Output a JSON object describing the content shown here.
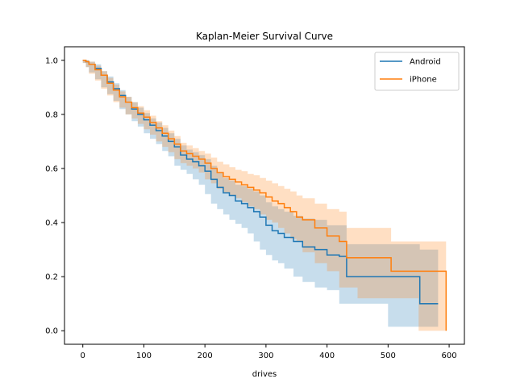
{
  "chart_data": {
    "type": "line",
    "title": "Kaplan-Meier Survival Curve",
    "xlabel": "drives",
    "ylabel": "",
    "xlim": [
      -30,
      625
    ],
    "ylim": [
      -0.05,
      1.05
    ],
    "xticks": [
      0,
      100,
      200,
      300,
      400,
      500,
      600
    ],
    "yticks": [
      0.0,
      0.2,
      0.4,
      0.6,
      0.8,
      1.0
    ],
    "xtick_labels": [
      "0",
      "100",
      "200",
      "300",
      "400",
      "500",
      "600"
    ],
    "ytick_labels": [
      "0.0",
      "0.2",
      "0.4",
      "0.6",
      "0.8",
      "1.0"
    ],
    "legend_position": "top-right",
    "grid": false,
    "series": [
      {
        "name": "Android",
        "color": "#1f77b4",
        "step": true,
        "x": [
          0,
          5,
          10,
          20,
          30,
          40,
          50,
          60,
          70,
          80,
          90,
          100,
          110,
          120,
          130,
          140,
          150,
          160,
          170,
          180,
          190,
          200,
          210,
          220,
          230,
          240,
          250,
          260,
          270,
          280,
          290,
          300,
          310,
          320,
          330,
          345,
          360,
          380,
          400,
          420,
          432,
          450,
          500,
          552,
          582
        ],
        "y": [
          1.0,
          0.995,
          0.985,
          0.97,
          0.945,
          0.92,
          0.895,
          0.87,
          0.845,
          0.82,
          0.8,
          0.78,
          0.76,
          0.74,
          0.72,
          0.7,
          0.68,
          0.65,
          0.635,
          0.625,
          0.61,
          0.59,
          0.56,
          0.53,
          0.51,
          0.5,
          0.48,
          0.47,
          0.455,
          0.44,
          0.42,
          0.39,
          0.37,
          0.36,
          0.345,
          0.33,
          0.31,
          0.3,
          0.28,
          0.275,
          0.2,
          0.2,
          0.2,
          0.1,
          0.1
        ],
        "ci_lower": [
          1.0,
          0.99,
          0.975,
          0.955,
          0.93,
          0.9,
          0.875,
          0.85,
          0.82,
          0.8,
          0.775,
          0.755,
          0.73,
          0.71,
          0.69,
          0.665,
          0.645,
          0.61,
          0.595,
          0.58,
          0.56,
          0.54,
          0.505,
          0.47,
          0.45,
          0.43,
          0.41,
          0.395,
          0.38,
          0.36,
          0.33,
          0.3,
          0.28,
          0.26,
          0.25,
          0.23,
          0.2,
          0.18,
          0.16,
          0.15,
          0.1,
          0.1,
          0.1,
          0.015,
          0.015
        ],
        "ci_upper": [
          1.0,
          1.0,
          0.995,
          0.985,
          0.96,
          0.94,
          0.915,
          0.89,
          0.865,
          0.845,
          0.825,
          0.805,
          0.785,
          0.77,
          0.75,
          0.73,
          0.71,
          0.685,
          0.67,
          0.66,
          0.65,
          0.635,
          0.61,
          0.585,
          0.565,
          0.555,
          0.54,
          0.535,
          0.525,
          0.515,
          0.5,
          0.475,
          0.46,
          0.45,
          0.44,
          0.425,
          0.415,
          0.41,
          0.39,
          0.39,
          0.32,
          0.32,
          0.32,
          0.3,
          0.3
        ]
      },
      {
        "name": "iPhone",
        "color": "#ff7f0e",
        "step": true,
        "x": [
          0,
          5,
          10,
          20,
          30,
          40,
          50,
          60,
          70,
          80,
          90,
          100,
          110,
          120,
          130,
          140,
          150,
          160,
          170,
          180,
          190,
          200,
          210,
          220,
          230,
          240,
          250,
          260,
          270,
          280,
          290,
          300,
          310,
          320,
          330,
          340,
          350,
          360,
          380,
          400,
          420,
          432,
          450,
          505,
          550,
          595
        ],
        "y": [
          1.0,
          0.995,
          0.985,
          0.965,
          0.945,
          0.915,
          0.89,
          0.865,
          0.845,
          0.825,
          0.805,
          0.79,
          0.77,
          0.75,
          0.73,
          0.71,
          0.69,
          0.665,
          0.655,
          0.645,
          0.635,
          0.62,
          0.6,
          0.585,
          0.57,
          0.56,
          0.55,
          0.54,
          0.53,
          0.52,
          0.51,
          0.495,
          0.48,
          0.47,
          0.455,
          0.44,
          0.42,
          0.41,
          0.38,
          0.35,
          0.33,
          0.27,
          0.27,
          0.22,
          0.22,
          0.0
        ],
        "ci_lower": [
          1.0,
          0.99,
          0.975,
          0.95,
          0.925,
          0.895,
          0.87,
          0.845,
          0.825,
          0.8,
          0.785,
          0.765,
          0.745,
          0.725,
          0.7,
          0.68,
          0.66,
          0.635,
          0.62,
          0.61,
          0.6,
          0.585,
          0.56,
          0.545,
          0.525,
          0.51,
          0.5,
          0.49,
          0.475,
          0.46,
          0.45,
          0.43,
          0.41,
          0.4,
          0.38,
          0.36,
          0.34,
          0.33,
          0.29,
          0.25,
          0.22,
          0.16,
          0.16,
          0.12,
          0.12,
          0.0
        ],
        "ci_upper": [
          1.0,
          1.0,
          0.995,
          0.98,
          0.96,
          0.935,
          0.91,
          0.885,
          0.865,
          0.845,
          0.83,
          0.815,
          0.795,
          0.775,
          0.76,
          0.74,
          0.72,
          0.695,
          0.685,
          0.675,
          0.665,
          0.655,
          0.64,
          0.625,
          0.615,
          0.605,
          0.595,
          0.59,
          0.58,
          0.575,
          0.565,
          0.555,
          0.545,
          0.535,
          0.525,
          0.515,
          0.5,
          0.49,
          0.47,
          0.45,
          0.44,
          0.38,
          0.38,
          0.33,
          0.33,
          0.33
        ]
      }
    ]
  }
}
